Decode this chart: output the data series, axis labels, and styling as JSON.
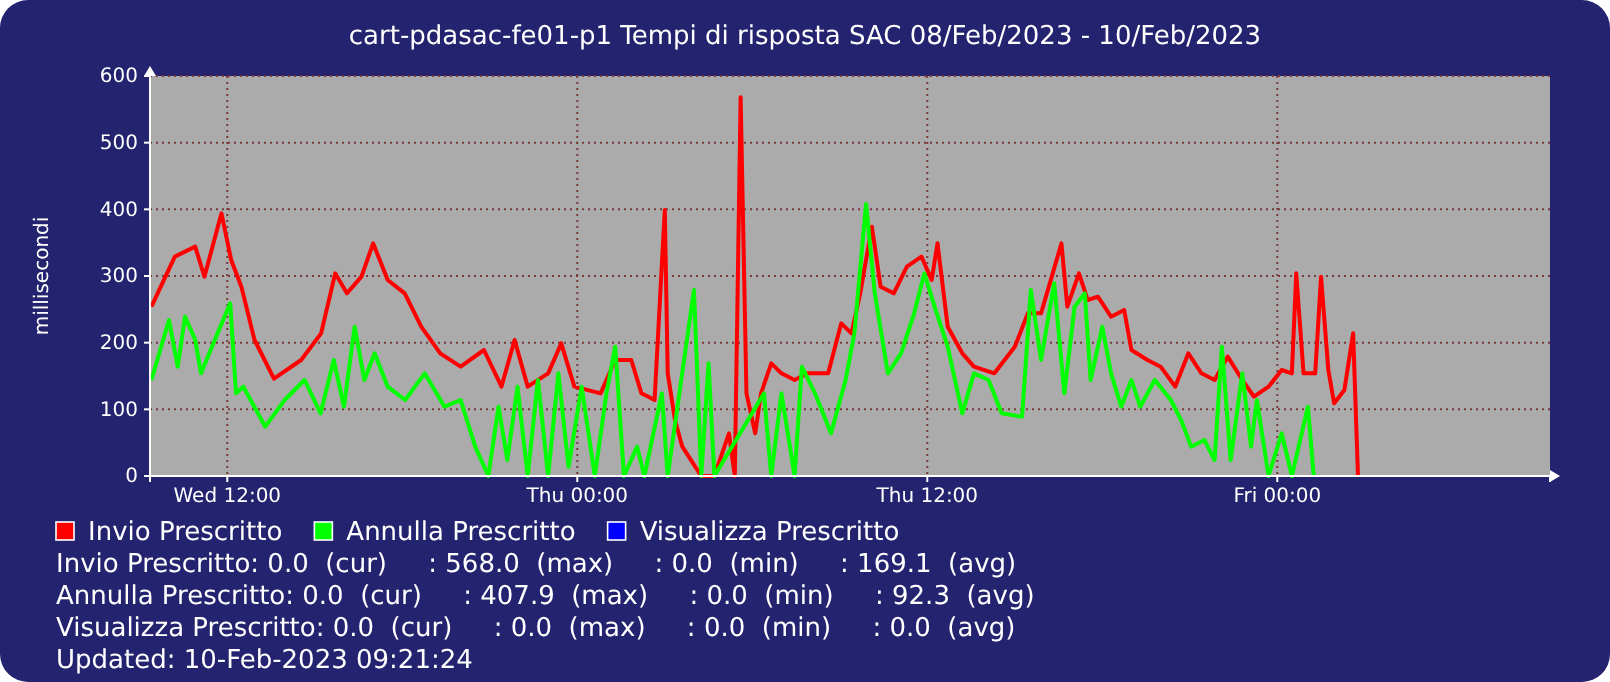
{
  "chart_data": {
    "type": "line",
    "title": "cart-pdasac-fe01-p1 Tempi di risposta SAC 08/Feb/2023 - 10/Feb/2023",
    "ylabel": "millisecondi",
    "xlim": [
      "2023-02-08T09:21",
      "2023-02-10T09:21"
    ],
    "xticks": [
      {
        "value": "2023-02-08T12:00",
        "label": "Wed 12:00"
      },
      {
        "value": "2023-02-09T00:00",
        "label": "Thu 00:00"
      },
      {
        "value": "2023-02-09T12:00",
        "label": "Thu 12:00"
      },
      {
        "value": "2023-02-10T00:00",
        "label": "Fri 00:00"
      }
    ],
    "ylim": [
      0,
      600
    ],
    "yticks": [
      0,
      100,
      200,
      300,
      400,
      500,
      600
    ],
    "grid": true,
    "legend": "bottom",
    "line_style": "solid",
    "marker": "none",
    "series": [
      {
        "name": "Invio Prescritto",
        "color": "#ff0000",
        "x": [
          "2023-02-08T09:24",
          "2023-02-08T10:12",
          "2023-02-08T10:54",
          "2023-02-08T11:13",
          "2023-02-08T11:48",
          "2023-02-08T12:08",
          "2023-02-08T12:29",
          "2023-02-08T12:56",
          "2023-02-08T13:36",
          "2023-02-08T14:32",
          "2023-02-08T15:13",
          "2023-02-08T15:42",
          "2023-02-08T16:06",
          "2023-02-08T16:36",
          "2023-02-08T17:00",
          "2023-02-08T17:30",
          "2023-02-08T18:05",
          "2023-02-08T18:39",
          "2023-02-08T19:18",
          "2023-02-08T20:00",
          "2023-02-08T20:48",
          "2023-02-08T21:24",
          "2023-02-08T21:51",
          "2023-02-08T22:18",
          "2023-02-08T23:00",
          "2023-02-08T23:27",
          "2023-02-08T23:54",
          "2023-02-09T00:48",
          "2023-02-09T01:18",
          "2023-02-09T01:51",
          "2023-02-09T02:12",
          "2023-02-09T02:39",
          "2023-02-09T03:00",
          "2023-02-09T03:06",
          "2023-02-09T03:21",
          "2023-02-09T03:36",
          "2023-02-09T04:15",
          "2023-02-09T04:42",
          "2023-02-09T05:12",
          "2023-02-09T05:24",
          "2023-02-09T05:36",
          "2023-02-09T05:48",
          "2023-02-09T06:06",
          "2023-02-09T06:18",
          "2023-02-09T06:39",
          "2023-02-09T07:00",
          "2023-02-09T07:27",
          "2023-02-09T07:54",
          "2023-02-09T08:36",
          "2023-02-09T09:03",
          "2023-02-09T09:24",
          "2023-02-09T09:42",
          "2023-02-09T10:06",
          "2023-02-09T10:24",
          "2023-02-09T10:51",
          "2023-02-09T11:18",
          "2023-02-09T11:48",
          "2023-02-09T12:09",
          "2023-02-09T12:21",
          "2023-02-09T12:42",
          "2023-02-09T13:12",
          "2023-02-09T13:36",
          "2023-02-09T14:18",
          "2023-02-09T15:00",
          "2023-02-09T15:27",
          "2023-02-09T15:54",
          "2023-02-09T16:36",
          "2023-02-09T16:48",
          "2023-02-09T17:12",
          "2023-02-09T17:30",
          "2023-02-09T17:51",
          "2023-02-09T18:18",
          "2023-02-09T18:45",
          "2023-02-09T19:00",
          "2023-02-09T19:33",
          "2023-02-09T20:00",
          "2023-02-09T20:30",
          "2023-02-09T20:57",
          "2023-02-09T21:24",
          "2023-02-09T21:51",
          "2023-02-09T22:18",
          "2023-02-09T22:48",
          "2023-02-09T23:12",
          "2023-02-09T23:42",
          "2023-02-10T00:09",
          "2023-02-10T00:30",
          "2023-02-10T00:39",
          "2023-02-10T00:54",
          "2023-02-10T01:18",
          "2023-02-10T01:30",
          "2023-02-10T01:45",
          "2023-02-10T01:57",
          "2023-02-10T02:18",
          "2023-02-10T02:36",
          "2023-02-10T02:46"
        ],
        "values": [
          254,
          329,
          344,
          299,
          394,
          324,
          284,
          204,
          146,
          174,
          214,
          304,
          274,
          299,
          349,
          294,
          274,
          224,
          184,
          164,
          189,
          134,
          204,
          134,
          154,
          199,
          134,
          124,
          174,
          174,
          124,
          114,
          399,
          154,
          84,
          44,
          0,
          0,
          64,
          0,
          568,
          124,
          64,
          124,
          169,
          154,
          144,
          154,
          154,
          229,
          214,
          274,
          374,
          284,
          274,
          314,
          329,
          294,
          349,
          224,
          184,
          164,
          154,
          194,
          244,
          244,
          349,
          254,
          304,
          264,
          269,
          239,
          249,
          189,
          174,
          164,
          134,
          184,
          154,
          144,
          179,
          144,
          119,
          134,
          159,
          154,
          304,
          154,
          154,
          299,
          159,
          109,
          129,
          214,
          0
        ]
      },
      {
        "name": "Annulla Prescritto",
        "color": "#00ff00",
        "x": [
          "2023-02-08T09:24",
          "2023-02-08T10:00",
          "2023-02-08T10:18",
          "2023-02-08T10:33",
          "2023-02-08T10:54",
          "2023-02-08T11:06",
          "2023-02-08T11:40",
          "2023-02-08T12:06",
          "2023-02-08T12:18",
          "2023-02-08T12:33",
          "2023-02-08T13:18",
          "2023-02-08T13:58",
          "2023-02-08T14:39",
          "2023-02-08T15:12",
          "2023-02-08T15:39",
          "2023-02-08T16:00",
          "2023-02-08T16:22",
          "2023-02-08T16:42",
          "2023-02-08T17:03",
          "2023-02-08T17:30",
          "2023-02-08T18:06",
          "2023-02-08T18:46",
          "2023-02-08T19:27",
          "2023-02-08T20:00",
          "2023-02-08T20:30",
          "2023-02-08T20:57",
          "2023-02-08T21:18",
          "2023-02-08T21:36",
          "2023-02-08T21:57",
          "2023-02-08T22:18",
          "2023-02-08T22:39",
          "2023-02-08T23:00",
          "2023-02-08T23:21",
          "2023-02-08T23:42",
          "2023-02-09T00:09",
          "2023-02-09T00:36",
          "2023-02-09T01:00",
          "2023-02-09T01:18",
          "2023-02-09T01:36",
          "2023-02-09T02:03",
          "2023-02-09T02:18",
          "2023-02-09T02:54",
          "2023-02-09T03:06",
          "2023-02-09T04:00",
          "2023-02-09T04:15",
          "2023-02-09T04:30",
          "2023-02-09T04:42",
          "2023-02-09T06:24",
          "2023-02-09T06:39",
          "2023-02-09T07:00",
          "2023-02-09T07:27",
          "2023-02-09T07:42",
          "2023-02-09T08:09",
          "2023-02-09T08:42",
          "2023-02-09T09:12",
          "2023-02-09T09:30",
          "2023-02-09T09:54",
          "2023-02-09T10:12",
          "2023-02-09T10:39",
          "2023-02-09T11:06",
          "2023-02-09T11:33",
          "2023-02-09T11:54",
          "2023-02-09T12:15",
          "2023-02-09T12:42",
          "2023-02-09T13:12",
          "2023-02-09T13:36",
          "2023-02-09T14:06",
          "2023-02-09T14:33",
          "2023-02-09T15:15",
          "2023-02-09T15:33",
          "2023-02-09T15:54",
          "2023-02-09T16:21",
          "2023-02-09T16:42",
          "2023-02-09T17:03",
          "2023-02-09T17:24",
          "2023-02-09T17:36",
          "2023-02-09T18:00",
          "2023-02-09T18:18",
          "2023-02-09T18:39",
          "2023-02-09T19:00",
          "2023-02-09T19:18",
          "2023-02-09T19:48",
          "2023-02-09T20:21",
          "2023-02-09T20:42",
          "2023-02-09T21:03",
          "2023-02-09T21:30",
          "2023-02-09T21:51",
          "2023-02-09T22:06",
          "2023-02-09T22:24",
          "2023-02-09T22:48",
          "2023-02-09T23:06",
          "2023-02-09T23:18",
          "2023-02-09T23:42",
          "2023-02-10T00:09",
          "2023-02-10T00:30",
          "2023-02-10T01:03",
          "2023-02-10T01:15"
        ],
        "values": [
          144,
          234,
          164,
          239,
          204,
          154,
          214,
          259,
          124,
          134,
          74,
          114,
          144,
          94,
          174,
          104,
          224,
          144,
          184,
          134,
          114,
          154,
          104,
          114,
          44,
          0,
          104,
          24,
          134,
          0,
          144,
          0,
          154,
          14,
          134,
          0,
          124,
          194,
          0,
          44,
          0,
          124,
          0,
          279,
          0,
          169,
          0,
          124,
          0,
          124,
          0,
          164,
          124,
          64,
          144,
          214,
          408,
          274,
          154,
          184,
          244,
          304,
          254,
          194,
          94,
          154,
          144,
          94,
          89,
          279,
          174,
          289,
          124,
          254,
          274,
          144,
          224,
          154,
          104,
          144,
          104,
          144,
          114,
          84,
          44,
          54,
          24,
          194,
          24,
          154,
          44,
          114,
          0,
          64,
          0,
          104,
          0
        ]
      },
      {
        "name": "Visualizza Prescritto",
        "color": "#0000ff"
      }
    ],
    "annotations": [
      "Invio Prescritto: 0.0  (cur)     : 568.0  (max)     : 0.0  (min)     : 169.1  (avg)",
      "Annulla Prescritto: 0.0  (cur)     : 407.9  (max)     : 0.0  (min)     : 92.3  (avg)",
      "Visualizza Prescritto: 0.0  (cur)     : 0.0  (max)     : 0.0  (min)     : 0.0  (avg)",
      "Updated: 10-Feb-2023 09:21:24"
    ]
  }
}
